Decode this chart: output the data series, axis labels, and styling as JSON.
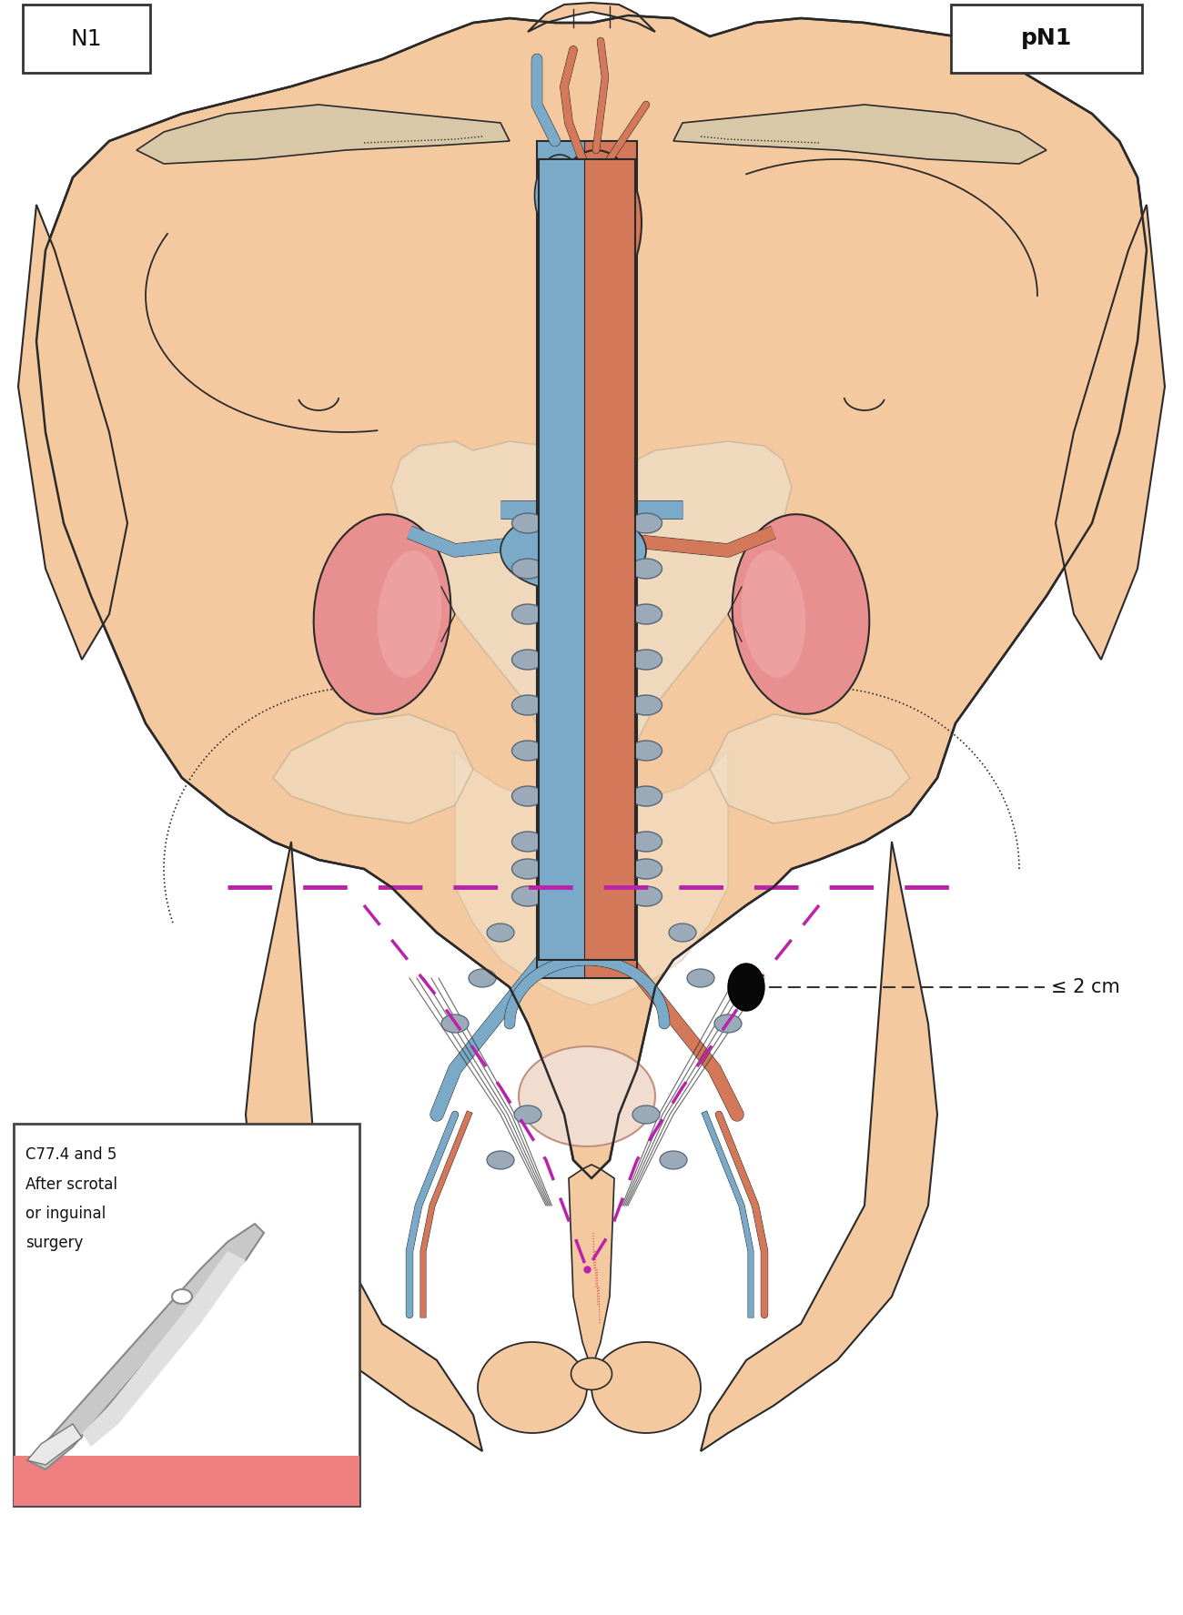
{
  "bg_color": "#FFFFFF",
  "skin_color": "#F5C9A0",
  "skin_outline": "#2A2A2A",
  "vessel_blue": "#7BAAC8",
  "vessel_red": "#D4785A",
  "vessel_outline": "#2A2A2A",
  "lymph_node_fill": "#9BAAB8",
  "lymph_node_outline": "#556677",
  "kidney_fill": "#E89090",
  "kidney_outline": "#2A2A2A",
  "abd_fill": "#F0E8D8",
  "abd_outline": "#BBAA99",
  "dashed_line_color": "#BB22AA",
  "clav_fill": "#D8C8A8",
  "clav_outline": "#2A2A2A",
  "label_N1": "N1",
  "label_pN1": "pN1",
  "label_annotation": "≤ 2 cm",
  "label_scalpel1": "C77.4 and 5",
  "label_scalpel2": "After scrotal",
  "label_scalpel3": "or inguinal",
  "label_scalpel4": "surgery",
  "title_fontsize": 18,
  "label_fontsize": 14,
  "small_fontsize": 12
}
